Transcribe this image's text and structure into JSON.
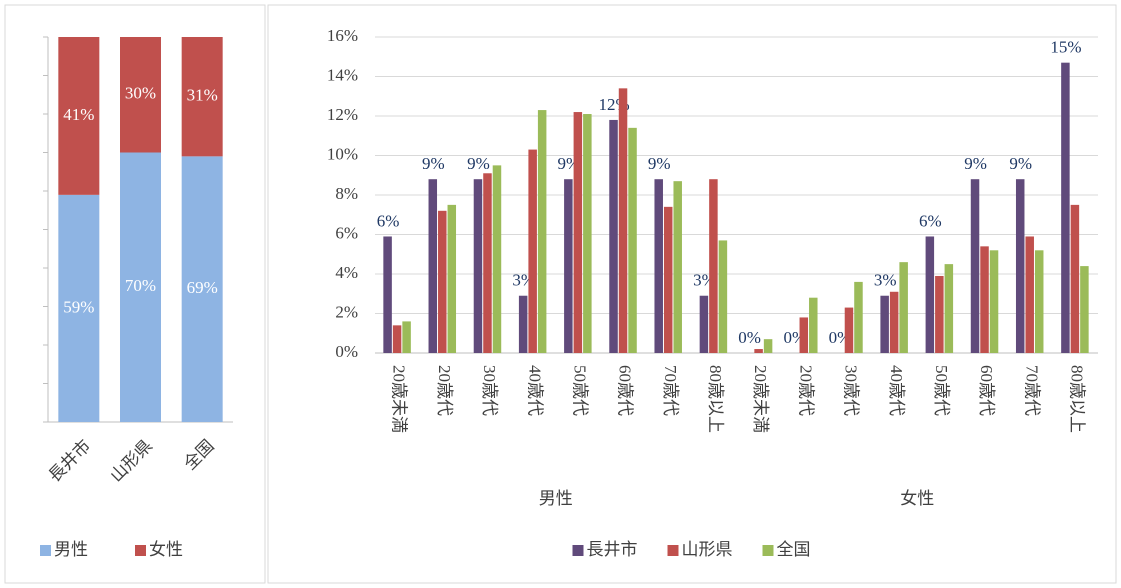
{
  "chart_data": [
    {
      "type": "stacked_bar",
      "categories": [
        "長井市",
        "山形県",
        "全国"
      ],
      "series": [
        {
          "name": "男性",
          "color": "#8eb4e3",
          "values": [
            59,
            70,
            69
          ],
          "value_labels": [
            "59%",
            "70%",
            "69%"
          ]
        },
        {
          "name": "女性",
          "color": "#c0504d",
          "values": [
            41,
            30,
            31
          ],
          "value_labels": [
            "41%",
            "30%",
            "31%"
          ]
        }
      ],
      "ylim": [
        0,
        100
      ],
      "yticks": [
        0,
        10,
        20,
        30,
        40,
        50,
        60,
        70,
        80,
        90,
        100
      ],
      "tick_labels": false,
      "legend": "bottom"
    },
    {
      "type": "bar",
      "groups": [
        {
          "label": "男性",
          "categories": [
            "20歳未満",
            "20歳代",
            "30歳代",
            "40歳代",
            "50歳代",
            "60歳代",
            "70歳代",
            "80歳以上"
          ]
        },
        {
          "label": "女性",
          "categories": [
            "20歳未満",
            "20歳代",
            "30歳代",
            "40歳代",
            "50歳代",
            "60歳代",
            "70歳代",
            "80歳以上"
          ]
        }
      ],
      "series": [
        {
          "name": "長井市",
          "color": "#604a7b",
          "values": [
            5.9,
            8.8,
            8.8,
            2.9,
            8.8,
            11.8,
            8.8,
            2.9,
            0,
            0,
            0,
            2.9,
            5.9,
            8.8,
            8.8,
            14.7
          ],
          "value_labels": [
            "6%",
            "9%",
            "9%",
            "3%",
            "9%",
            "12%",
            "9%",
            "3%",
            "0%",
            "0%",
            "0%",
            "3%",
            "6%",
            "9%",
            "9%",
            "15%"
          ]
        },
        {
          "name": "山形県",
          "color": "#c0504d",
          "values": [
            1.4,
            7.2,
            9.1,
            10.3,
            12.2,
            13.4,
            7.4,
            8.8,
            0.2,
            1.8,
            2.3,
            3.1,
            3.9,
            5.4,
            5.9,
            7.5
          ]
        },
        {
          "name": "全国",
          "color": "#9bbb59",
          "values": [
            1.6,
            7.5,
            9.5,
            12.3,
            12.1,
            11.4,
            8.7,
            5.7,
            0.7,
            2.8,
            3.6,
            4.6,
            4.5,
            5.2,
            5.2,
            4.4
          ]
        }
      ],
      "ylim": [
        0,
        16
      ],
      "yticks": [
        {
          "value": 0,
          "label": "0%"
        },
        {
          "value": 2,
          "label": "2%"
        },
        {
          "value": 4,
          "label": "4%"
        },
        {
          "value": 6,
          "label": "6%"
        },
        {
          "value": 8,
          "label": "8%"
        },
        {
          "value": 10,
          "label": "10%"
        },
        {
          "value": 12,
          "label": "12%"
        },
        {
          "value": 14,
          "label": "14%"
        },
        {
          "value": 16,
          "label": "16%"
        }
      ],
      "legend": "bottom"
    }
  ]
}
